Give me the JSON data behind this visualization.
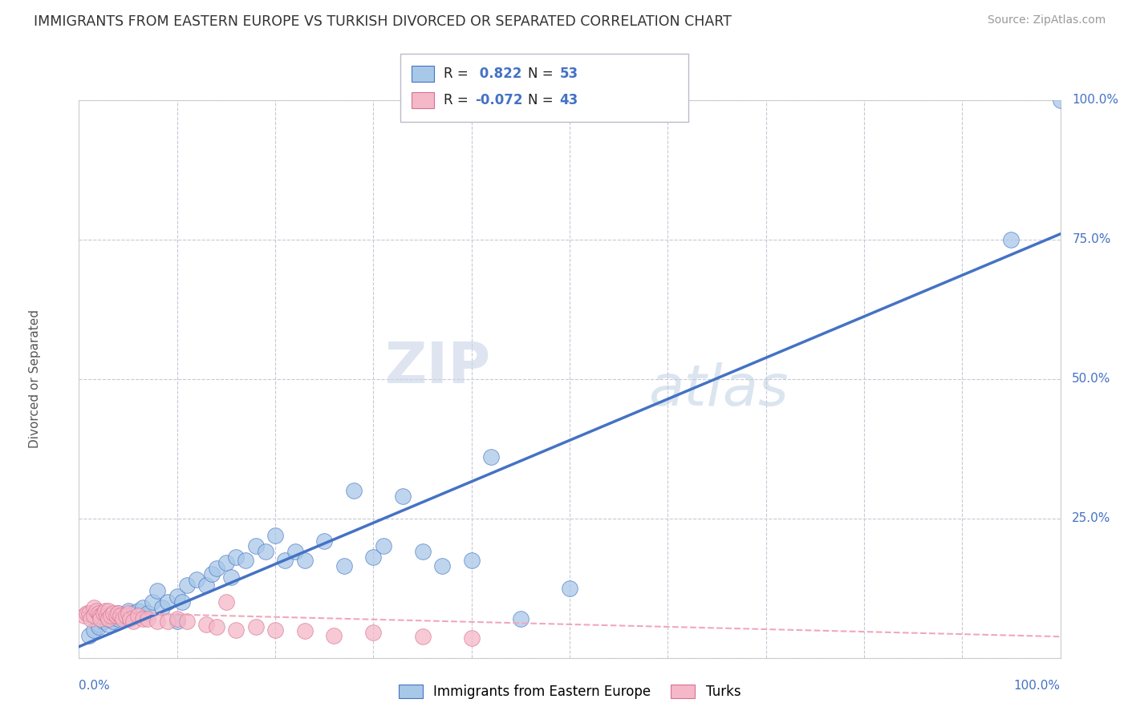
{
  "title": "IMMIGRANTS FROM EASTERN EUROPE VS TURKISH DIVORCED OR SEPARATED CORRELATION CHART",
  "source": "Source: ZipAtlas.com",
  "ylabel": "Divorced or Separated",
  "legend1_label": "Immigrants from Eastern Europe",
  "legend2_label": "Turks",
  "R1": 0.822,
  "N1": 53,
  "R2": -0.072,
  "N2": 43,
  "color1": "#a8c8e8",
  "color2": "#f4b8c8",
  "line1_color": "#4472c4",
  "line2_color": "#f4a0b0",
  "background_color": "#ffffff",
  "grid_color": "#c8c8d8",
  "blue_scatter_x": [
    0.01,
    0.015,
    0.02,
    0.02,
    0.025,
    0.03,
    0.03,
    0.035,
    0.04,
    0.04,
    0.045,
    0.05,
    0.05,
    0.055,
    0.06,
    0.065,
    0.07,
    0.075,
    0.08,
    0.085,
    0.09,
    0.1,
    0.1,
    0.105,
    0.11,
    0.12,
    0.13,
    0.135,
    0.14,
    0.15,
    0.155,
    0.16,
    0.17,
    0.18,
    0.19,
    0.2,
    0.21,
    0.22,
    0.23,
    0.25,
    0.27,
    0.28,
    0.3,
    0.31,
    0.33,
    0.35,
    0.37,
    0.4,
    0.42,
    0.45,
    0.5,
    0.95,
    1.0
  ],
  "blue_scatter_y": [
    0.04,
    0.05,
    0.06,
    0.055,
    0.065,
    0.06,
    0.07,
    0.065,
    0.08,
    0.07,
    0.075,
    0.085,
    0.07,
    0.08,
    0.085,
    0.09,
    0.08,
    0.1,
    0.12,
    0.09,
    0.1,
    0.11,
    0.065,
    0.1,
    0.13,
    0.14,
    0.13,
    0.15,
    0.16,
    0.17,
    0.145,
    0.18,
    0.175,
    0.2,
    0.19,
    0.22,
    0.175,
    0.19,
    0.175,
    0.21,
    0.165,
    0.3,
    0.18,
    0.2,
    0.29,
    0.19,
    0.165,
    0.175,
    0.36,
    0.07,
    0.125,
    0.75,
    1.0
  ],
  "pink_scatter_x": [
    0.005,
    0.008,
    0.01,
    0.012,
    0.015,
    0.015,
    0.018,
    0.02,
    0.022,
    0.022,
    0.025,
    0.027,
    0.028,
    0.03,
    0.03,
    0.032,
    0.035,
    0.038,
    0.04,
    0.042,
    0.045,
    0.048,
    0.05,
    0.052,
    0.055,
    0.06,
    0.065,
    0.07,
    0.08,
    0.09,
    0.1,
    0.11,
    0.13,
    0.14,
    0.16,
    0.18,
    0.2,
    0.23,
    0.26,
    0.3,
    0.35,
    0.4,
    0.15
  ],
  "pink_scatter_y": [
    0.075,
    0.08,
    0.08,
    0.07,
    0.09,
    0.075,
    0.085,
    0.08,
    0.075,
    0.07,
    0.08,
    0.085,
    0.075,
    0.085,
    0.07,
    0.075,
    0.08,
    0.075,
    0.08,
    0.075,
    0.07,
    0.075,
    0.08,
    0.07,
    0.065,
    0.075,
    0.07,
    0.07,
    0.065,
    0.065,
    0.07,
    0.065,
    0.06,
    0.055,
    0.05,
    0.055,
    0.05,
    0.048,
    0.04,
    0.045,
    0.038,
    0.035,
    0.1
  ]
}
